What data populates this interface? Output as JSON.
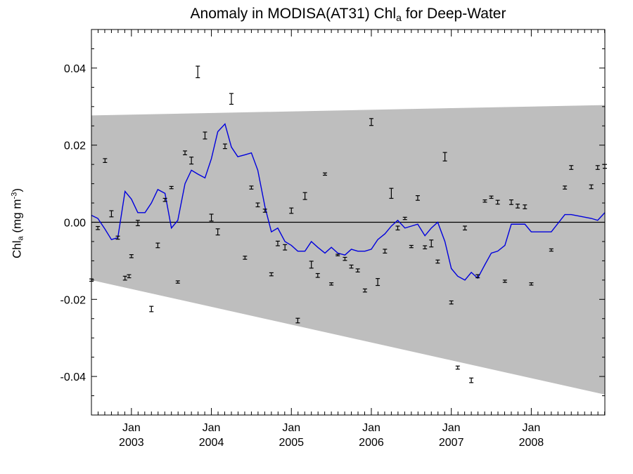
{
  "title": {
    "prefix": "Anomaly in MODISA(AT31) Chl",
    "subscript": "a",
    "suffix": " for Deep-Water"
  },
  "ylabel": {
    "prefix": "Chl",
    "subscript": "a",
    "unit_open": " (mg m",
    "unit_sup": "-3",
    "unit_close": ")"
  },
  "chart_data": {
    "type": "line",
    "title": "Anomaly in MODISA(AT31) Chla for Deep-Water",
    "ylabel": "Chla (mg m-3)",
    "xlabel": "",
    "xlim": [
      2002.5,
      2008.92
    ],
    "ylim": [
      -0.05,
      0.05
    ],
    "yticks": [
      -0.04,
      -0.02,
      0.0,
      0.02,
      0.04
    ],
    "ytick_labels": [
      "-0.04",
      "-0.02",
      "0.00",
      "0.02",
      "0.04"
    ],
    "xticks": [
      2003.0,
      2004.0,
      2005.0,
      2006.0,
      2007.0,
      2008.0
    ],
    "xtick_labels_month": [
      "Jan",
      "Jan",
      "Jan",
      "Jan",
      "Jan",
      "Jan"
    ],
    "xtick_labels_year": [
      "2003",
      "2004",
      "2005",
      "2006",
      "2007",
      "2008"
    ],
    "grid": false,
    "zero_line": true,
    "shaded_band": {
      "x": [
        2002.5,
        2008.92
      ],
      "upper": [
        0.0277,
        0.0304
      ],
      "lower": [
        -0.015,
        -0.0447
      ],
      "color": "#bebebe"
    },
    "series": [
      {
        "type": "line",
        "color": "#0000dd",
        "x": [
          2002.5,
          2002.58,
          2002.67,
          2002.75,
          2002.83,
          2002.92,
          2003.0,
          2003.08,
          2003.17,
          2003.25,
          2003.33,
          2003.42,
          2003.5,
          2003.58,
          2003.67,
          2003.75,
          2003.83,
          2003.92,
          2004.0,
          2004.08,
          2004.17,
          2004.25,
          2004.33,
          2004.42,
          2004.5,
          2004.58,
          2004.67,
          2004.75,
          2004.83,
          2004.92,
          2005.0,
          2005.08,
          2005.17,
          2005.25,
          2005.33,
          2005.42,
          2005.5,
          2005.58,
          2005.67,
          2005.75,
          2005.83,
          2005.92,
          2006.0,
          2006.08,
          2006.17,
          2006.25,
          2006.33,
          2006.42,
          2006.5,
          2006.58,
          2006.67,
          2006.75,
          2006.83,
          2006.92,
          2007.0,
          2007.08,
          2007.17,
          2007.25,
          2007.33,
          2007.42,
          2007.5,
          2007.58,
          2007.67,
          2007.75,
          2007.83,
          2007.92,
          2008.0,
          2008.25,
          2008.42,
          2008.5,
          2008.75,
          2008.83,
          2008.92
        ],
        "values": [
          0.0018,
          0.001,
          -0.0018,
          -0.0045,
          -0.004,
          0.008,
          0.006,
          0.0025,
          0.0025,
          0.005,
          0.0085,
          0.0075,
          -0.0015,
          0.0005,
          0.01,
          0.0135,
          0.0125,
          0.0115,
          0.0165,
          0.0235,
          0.0255,
          0.0195,
          0.017,
          0.0175,
          0.018,
          0.0135,
          0.004,
          -0.0025,
          -0.0015,
          -0.005,
          -0.006,
          -0.0075,
          -0.0075,
          -0.005,
          -0.0065,
          -0.008,
          -0.0065,
          -0.008,
          -0.0085,
          -0.007,
          -0.0075,
          -0.0075,
          -0.007,
          -0.0045,
          -0.003,
          -0.001,
          0.0005,
          -0.0015,
          -0.001,
          -0.0005,
          -0.0035,
          -0.0015,
          0.0,
          -0.005,
          -0.012,
          -0.014,
          -0.015,
          -0.013,
          -0.0145,
          -0.011,
          -0.008,
          -0.0075,
          -0.006,
          -0.0005,
          -0.0005,
          -0.0005,
          -0.0025,
          -0.0025,
          0.002,
          0.002,
          0.001,
          0.0005,
          0.0025
        ]
      },
      {
        "type": "errorbar",
        "color": "#000000",
        "x": [
          2002.5,
          2002.58,
          2002.67,
          2002.75,
          2002.83,
          2002.92,
          2002.97,
          2003.0,
          2003.08,
          2003.25,
          2003.33,
          2003.42,
          2003.5,
          2003.58,
          2003.67,
          2003.75,
          2003.83,
          2003.92,
          2004.0,
          2004.08,
          2004.17,
          2004.25,
          2004.42,
          2004.5,
          2004.58,
          2004.67,
          2004.75,
          2004.83,
          2004.92,
          2005.0,
          2005.08,
          2005.17,
          2005.25,
          2005.33,
          2005.42,
          2005.5,
          2005.58,
          2005.67,
          2005.75,
          2005.83,
          2005.92,
          2006.0,
          2006.08,
          2006.17,
          2006.25,
          2006.33,
          2006.42,
          2006.5,
          2006.58,
          2006.67,
          2006.75,
          2006.83,
          2006.92,
          2007.0,
          2007.08,
          2007.17,
          2007.25,
          2007.33,
          2007.42,
          2007.5,
          2007.58,
          2007.67,
          2007.75,
          2007.83,
          2007.92,
          2008.0,
          2008.25,
          2008.42,
          2008.5,
          2008.75,
          2008.83,
          2008.92
        ],
        "values": [
          -0.015,
          -0.0015,
          0.016,
          0.0022,
          -0.004,
          -0.0145,
          -0.014,
          -0.0088,
          -0.0002,
          -0.0225,
          -0.006,
          0.0058,
          0.009,
          -0.0155,
          0.018,
          0.016,
          0.039,
          0.0225,
          0.0012,
          -0.0025,
          0.0197,
          0.032,
          -0.0092,
          0.009,
          0.0045,
          0.003,
          -0.0135,
          -0.0055,
          -0.0065,
          0.003,
          -0.0255,
          0.0068,
          -0.011,
          -0.0138,
          0.0125,
          -0.016,
          -0.0085,
          -0.0095,
          -0.0115,
          -0.0125,
          -0.0177,
          0.026,
          -0.0155,
          -0.0075,
          0.0075,
          -0.0015,
          0.001,
          -0.0063,
          0.0063,
          -0.0065,
          -0.0055,
          -0.0102,
          0.017,
          -0.0208,
          -0.0377,
          -0.0015,
          -0.041,
          -0.014,
          0.0055,
          0.0065,
          0.0052,
          -0.0153,
          0.0052,
          0.0042,
          0.004,
          -0.016,
          -0.0072,
          0.009,
          0.0142,
          0.0092,
          0.0142,
          0.0145
        ],
        "errors": [
          0.0003,
          0.0004,
          0.0005,
          0.0008,
          0.0004,
          0.0005,
          0.0004,
          0.0004,
          0.0007,
          0.0007,
          0.0006,
          0.0004,
          0.0003,
          0.0003,
          0.0005,
          0.0009,
          0.0015,
          0.0009,
          0.0009,
          0.0008,
          0.0006,
          0.0014,
          0.0004,
          0.0004,
          0.0005,
          0.0004,
          0.0004,
          0.0006,
          0.0007,
          0.0007,
          0.0006,
          0.0009,
          0.0009,
          0.0005,
          0.0003,
          0.0003,
          0.0002,
          0.0004,
          0.0004,
          0.0004,
          0.0004,
          0.0009,
          0.0009,
          0.0005,
          0.0013,
          0.0005,
          0.0003,
          0.0003,
          0.0006,
          0.0004,
          0.0009,
          0.0004,
          0.0011,
          0.0004,
          0.0004,
          0.0005,
          0.0006,
          0.0004,
          0.0003,
          0.0003,
          0.0005,
          0.0003,
          0.0006,
          0.0005,
          0.0005,
          0.0003,
          0.0003,
          0.0004,
          0.0005,
          0.0005,
          0.0005,
          0.0005
        ]
      }
    ]
  }
}
